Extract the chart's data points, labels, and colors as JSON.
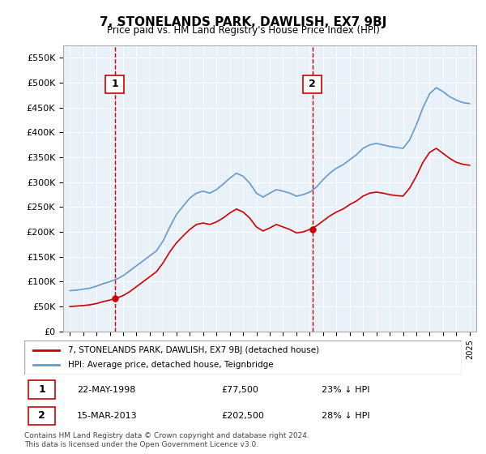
{
  "title": "7, STONELANDS PARK, DAWLISH, EX7 9BJ",
  "subtitle": "Price paid vs. HM Land Registry's House Price Index (HPI)",
  "sale1_date": "22-MAY-1998",
  "sale1_price": 77500,
  "sale1_label": "1",
  "sale1_pct": "23% ↓ HPI",
  "sale2_date": "15-MAR-2013",
  "sale2_price": 202500,
  "sale2_label": "2",
  "sale2_pct": "28% ↓ HPI",
  "legend_line1": "7, STONELANDS PARK, DAWLISH, EX7 9BJ (detached house)",
  "legend_line2": "HPI: Average price, detached house, Teignbridge",
  "footnote": "Contains HM Land Registry data © Crown copyright and database right 2024.\nThis data is licensed under the Open Government Licence v3.0.",
  "line_color_red": "#cc0000",
  "line_color_blue": "#6699cc",
  "background_color": "#e8f0f8",
  "ylim": [
    0,
    575000
  ],
  "yticks": [
    0,
    50000,
    100000,
    150000,
    200000,
    250000,
    300000,
    350000,
    400000,
    450000,
    500000,
    550000
  ],
  "sale1_x": 1998.38,
  "sale2_x": 2013.21
}
